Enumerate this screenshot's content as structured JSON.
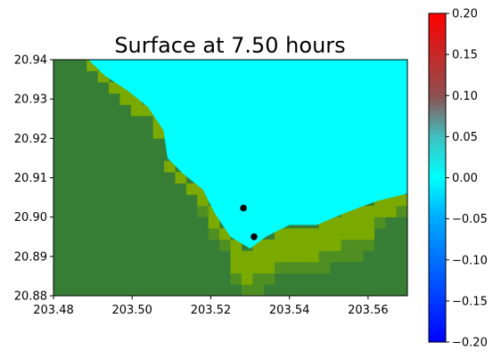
{
  "chart_data": [
    {
      "type": "heatmap",
      "title": "Surface at 7.50 hours",
      "xlabel": "",
      "ylabel": "",
      "xlim": [
        203.48,
        203.57
      ],
      "ylim": [
        20.88,
        20.94
      ],
      "x_ticks": [
        "203.48",
        "203.50",
        "203.52",
        "203.54",
        "203.56"
      ],
      "x_tick_values": [
        203.48,
        203.5,
        203.52,
        203.54,
        203.56
      ],
      "y_ticks": [
        "20.88",
        "20.89",
        "20.90",
        "20.91",
        "20.92",
        "20.93",
        "20.94"
      ],
      "y_tick_values": [
        20.88,
        20.89,
        20.9,
        20.91,
        20.92,
        20.93,
        20.94
      ],
      "grid": false,
      "grid_resolution_deg": 0.0028125,
      "colors": {
        "land_dark": "#367d36",
        "land_light": "#7aaa00",
        "land_mid": "#4f8f22",
        "water": "#00ffff"
      },
      "water_boundary_points": [
        [
          203.4889,
          20.94
        ],
        [
          203.493,
          20.936
        ],
        [
          203.499,
          20.932
        ],
        [
          203.504,
          20.928
        ],
        [
          203.508,
          20.922
        ],
        [
          203.509,
          20.915
        ],
        [
          203.513,
          20.911
        ],
        [
          203.518,
          20.907
        ],
        [
          203.521,
          20.901
        ],
        [
          203.525,
          20.895
        ],
        [
          203.53,
          20.892
        ],
        [
          203.534,
          20.895
        ],
        [
          203.54,
          20.898
        ],
        [
          203.547,
          20.898
        ],
        [
          203.554,
          20.901
        ],
        [
          203.562,
          20.904
        ],
        [
          203.57,
          20.906
        ]
      ],
      "markers": [
        {
          "x": 203.5283,
          "y": 20.9023
        },
        {
          "x": 203.531,
          "y": 20.895
        }
      ]
    },
    {
      "type": "colorbar",
      "range": [
        -0.2,
        0.2
      ],
      "ticks": [
        "0.20",
        "0.15",
        "0.10",
        "0.05",
        "0.00",
        "−0.05",
        "−0.10",
        "−0.15",
        "−0.20"
      ],
      "tick_values": [
        0.2,
        0.15,
        0.1,
        0.05,
        0.0,
        -0.05,
        -0.1,
        -0.15,
        -0.2
      ],
      "colormap": [
        {
          "value": 0.2,
          "color": "#ff0000"
        },
        {
          "value": 0.1,
          "color": "#8f4f4f"
        },
        {
          "value": 0.05,
          "color": "#40c0c0"
        },
        {
          "value": 0.0,
          "color": "#00ffff"
        },
        {
          "value": -0.05,
          "color": "#00aaff"
        },
        {
          "value": -0.2,
          "color": "#0000ff"
        }
      ]
    }
  ]
}
